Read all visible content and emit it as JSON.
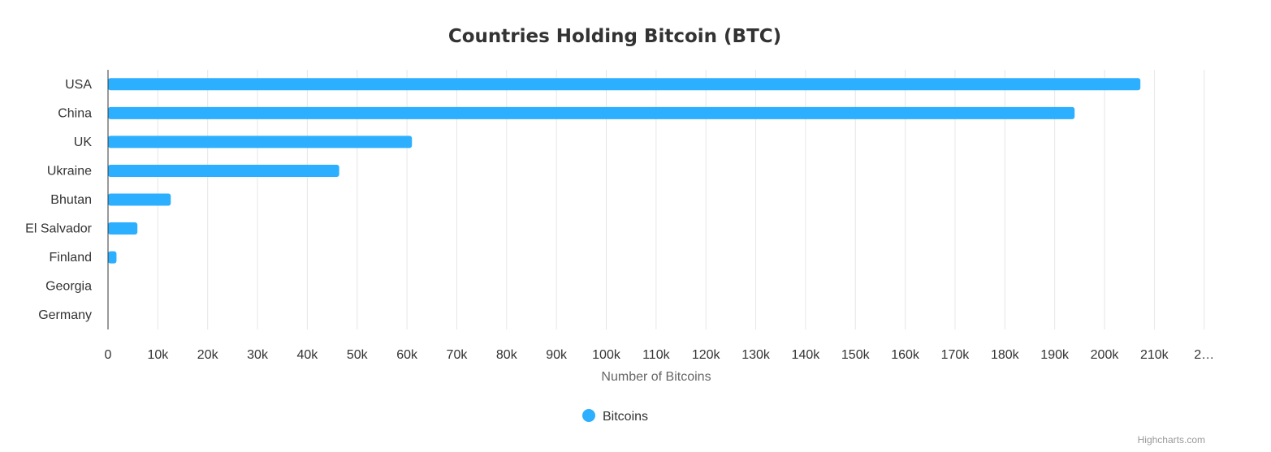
{
  "chart_data": {
    "type": "bar",
    "orientation": "horizontal",
    "title": "Countries Holding Bitcoin (BTC)",
    "categories": [
      "USA",
      "China",
      "UK",
      "Ukraine",
      "Bhutan",
      "El Salvador",
      "Finland",
      "Georgia",
      "Germany"
    ],
    "series": [
      {
        "name": "Bitcoins",
        "values": [
          207200,
          194000,
          61000,
          46400,
          12600,
          5900,
          1700,
          66,
          0
        ],
        "color": "#2caffe"
      }
    ],
    "xlabel": "Number of Bitcoins",
    "ylabel": "",
    "xlim": [
      0,
      220000
    ],
    "tick_step": 10000,
    "tick_labels": [
      "0",
      "10k",
      "20k",
      "30k",
      "40k",
      "50k",
      "60k",
      "70k",
      "80k",
      "90k",
      "100k",
      "110k",
      "120k",
      "130k",
      "140k",
      "150k",
      "160k",
      "170k",
      "180k",
      "190k",
      "200k",
      "210k",
      "2…"
    ],
    "grid": true,
    "legend_position": "bottom-center"
  },
  "credits": "Highcharts.com"
}
